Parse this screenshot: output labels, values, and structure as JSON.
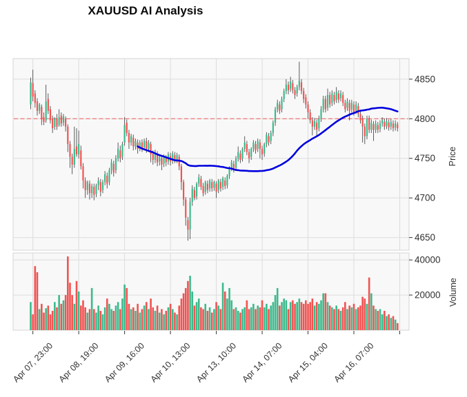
{
  "title": "XAUUSD AI Analysis",
  "colors": {
    "up": "#3CBA8B",
    "down": "#F05352",
    "wick": "#4A4A4A",
    "ma_line": "#0000DD",
    "level_line": "#F08080",
    "grid": "#DCDCDC",
    "panel_bg": "#F8F8F8",
    "panel_border": "#D4D4D4",
    "tick_text": "#303030"
  },
  "chart_data": {
    "type": "candlestick",
    "title": "XAUUSD AI Analysis",
    "legend": "none",
    "grid": "on",
    "price_axis": {
      "label": "Price",
      "ticks": [
        4850,
        4800,
        4750,
        4700,
        4650
      ],
      "range": [
        4634,
        4876
      ],
      "side": "right"
    },
    "volume_axis": {
      "label": "Volume",
      "ticks": [
        40000,
        20000
      ],
      "range": [
        0,
        44000
      ],
      "side": "right"
    },
    "x_ticks": [
      {
        "index": 1,
        "label": "Apr 07, 23:00"
      },
      {
        "index": 22,
        "label": "Apr 08, 19:00"
      },
      {
        "index": 43,
        "label": "Apr 09, 16:00"
      },
      {
        "index": 64,
        "label": "Apr 10, 13:00"
      },
      {
        "index": 85,
        "label": "Apr 13, 10:00"
      },
      {
        "index": 106,
        "label": "Apr 14, 07:00"
      },
      {
        "index": 127,
        "label": "Apr 15, 04:00"
      },
      {
        "index": 148,
        "label": "Apr 16, 07:00"
      },
      {
        "index": 169,
        "label": ""
      }
    ],
    "overlays": {
      "ma": {
        "name": "moving-average",
        "window": 50,
        "color": "#0000DD"
      },
      "hline": {
        "value": 4800,
        "style": "dashed",
        "color": "#F08080"
      }
    },
    "candle_columns": [
      "open",
      "high",
      "low",
      "close",
      "volume"
    ],
    "candles": [
      [
        4818,
        4852,
        4812,
        4846,
        16000
      ],
      [
        4845,
        4862,
        4822,
        4828,
        9000
      ],
      [
        4832,
        4836,
        4814,
        4820,
        36500
      ],
      [
        4822,
        4826,
        4804,
        4810,
        33000
      ],
      [
        4810,
        4820,
        4806,
        4818,
        12000
      ],
      [
        4815,
        4818,
        4792,
        4800,
        15000
      ],
      [
        4802,
        4808,
        4792,
        4796,
        10000
      ],
      [
        4798,
        4843,
        4795,
        4822,
        12500
      ],
      [
        4825,
        4832,
        4806,
        4810,
        14000
      ],
      [
        4812,
        4816,
        4794,
        4798,
        9000
      ],
      [
        4800,
        4804,
        4782,
        4788,
        11000
      ],
      [
        4790,
        4802,
        4786,
        4800,
        16000
      ],
      [
        4800,
        4806,
        4786,
        4790,
        13000
      ],
      [
        4792,
        4812,
        4790,
        4802,
        20000
      ],
      [
        4804,
        4808,
        4790,
        4794,
        15000
      ],
      [
        4795,
        4806,
        4791,
        4803,
        17000
      ],
      [
        4800,
        4803,
        4784,
        4790,
        20000
      ],
      [
        4790,
        4793,
        4758,
        4768,
        42000
      ],
      [
        4768,
        4772,
        4738,
        4752,
        27000
      ],
      [
        4752,
        4756,
        4730,
        4742,
        20000
      ],
      [
        4742,
        4790,
        4738,
        4762,
        15000
      ],
      [
        4765,
        4788,
        4752,
        4755,
        28000
      ],
      [
        4755,
        4785,
        4750,
        4768,
        22000
      ],
      [
        4760,
        4766,
        4736,
        4740,
        14000
      ],
      [
        4740,
        4744,
        4712,
        4722,
        17000
      ],
      [
        4722,
        4726,
        4700,
        4710,
        13000
      ],
      [
        4710,
        4722,
        4704,
        4720,
        10000
      ],
      [
        4718,
        4722,
        4698,
        4706,
        12000
      ],
      [
        4706,
        4718,
        4700,
        4715,
        24000
      ],
      [
        4714,
        4718,
        4697,
        4704,
        12000
      ],
      [
        4705,
        4718,
        4701,
        4716,
        10000
      ],
      [
        4716,
        4726,
        4710,
        4722,
        14000
      ],
      [
        4720,
        4724,
        4702,
        4708,
        11000
      ],
      [
        4710,
        4723,
        4706,
        4720,
        9000
      ],
      [
        4720,
        4734,
        4716,
        4730,
        13000
      ],
      [
        4728,
        4732,
        4712,
        4718,
        18000
      ],
      [
        4720,
        4738,
        4716,
        4735,
        15000
      ],
      [
        4735,
        4749,
        4730,
        4745,
        12000
      ],
      [
        4743,
        4747,
        4727,
        4732,
        11000
      ],
      [
        4735,
        4754,
        4731,
        4750,
        14000
      ],
      [
        4750,
        4770,
        4746,
        4762,
        16000
      ],
      [
        4760,
        4766,
        4745,
        4750,
        12000
      ],
      [
        4752,
        4771,
        4748,
        4768,
        18000
      ],
      [
        4770,
        4802,
        4766,
        4792,
        26000
      ],
      [
        4795,
        4799,
        4778,
        4782,
        24000
      ],
      [
        4782,
        4786,
        4762,
        4770,
        15000
      ],
      [
        4770,
        4781,
        4766,
        4778,
        12000
      ],
      [
        4776,
        4780,
        4760,
        4765,
        13000
      ],
      [
        4765,
        4775,
        4761,
        4772,
        11000
      ],
      [
        4770,
        4774,
        4756,
        4762,
        15000
      ],
      [
        4763,
        4773,
        4759,
        4770,
        10000
      ],
      [
        4770,
        4774,
        4758,
        4763,
        12000
      ],
      [
        4764,
        4775,
        4760,
        4772,
        14000
      ],
      [
        4772,
        4776,
        4757,
        4762,
        16000
      ],
      [
        4762,
        4773,
        4758,
        4770,
        12000
      ],
      [
        4768,
        4771,
        4745,
        4755,
        18000
      ],
      [
        4756,
        4760,
        4742,
        4748,
        13000
      ],
      [
        4748,
        4761,
        4744,
        4758,
        11000
      ],
      [
        4756,
        4759,
        4740,
        4745,
        14000
      ],
      [
        4746,
        4755,
        4741,
        4752,
        10000
      ],
      [
        4750,
        4753,
        4735,
        4742,
        12000
      ],
      [
        4743,
        4755,
        4739,
        4752,
        9000
      ],
      [
        4750,
        4754,
        4740,
        4745,
        11000
      ],
      [
        4746,
        4758,
        4742,
        4755,
        13000
      ],
      [
        4753,
        4757,
        4741,
        4746,
        15000
      ],
      [
        4747,
        4759,
        4743,
        4756,
        12000
      ],
      [
        4754,
        4758,
        4744,
        4748,
        10000
      ],
      [
        4748,
        4757,
        4744,
        4754,
        9000
      ],
      [
        4752,
        4755,
        4735,
        4740,
        14000
      ],
      [
        4740,
        4743,
        4710,
        4720,
        18000
      ],
      [
        4720,
        4723,
        4690,
        4698,
        21000
      ],
      [
        4698,
        4701,
        4665,
        4675,
        24000
      ],
      [
        4672,
        4676,
        4646,
        4660,
        28000
      ],
      [
        4660,
        4700,
        4648,
        4695,
        31000
      ],
      [
        4695,
        4716,
        4690,
        4712,
        22000
      ],
      [
        4710,
        4714,
        4697,
        4700,
        14000
      ],
      [
        4702,
        4720,
        4698,
        4718,
        16000
      ],
      [
        4718,
        4730,
        4714,
        4726,
        18000
      ],
      [
        4724,
        4728,
        4710,
        4714,
        13000
      ],
      [
        4715,
        4719,
        4702,
        4706,
        12000
      ],
      [
        4708,
        4722,
        4704,
        4720,
        15000
      ],
      [
        4718,
        4722,
        4706,
        4710,
        11000
      ],
      [
        4712,
        4724,
        4708,
        4722,
        13000
      ],
      [
        4720,
        4724,
        4708,
        4712,
        10000
      ],
      [
        4713,
        4722,
        4709,
        4720,
        12000
      ],
      [
        4718,
        4721,
        4700,
        4708,
        16000
      ],
      [
        4710,
        4724,
        4706,
        4722,
        14000
      ],
      [
        4720,
        4724,
        4708,
        4712,
        12000
      ],
      [
        4714,
        4727,
        4710,
        4725,
        27000
      ],
      [
        4722,
        4726,
        4711,
        4715,
        22000
      ],
      [
        4716,
        4730,
        4712,
        4728,
        18000
      ],
      [
        4728,
        4740,
        4724,
        4738,
        24000
      ],
      [
        4738,
        4748,
        4734,
        4745,
        17000
      ],
      [
        4743,
        4747,
        4732,
        4736,
        12000
      ],
      [
        4738,
        4753,
        4734,
        4750,
        13000
      ],
      [
        4750,
        4765,
        4746,
        4758,
        11000
      ],
      [
        4756,
        4760,
        4744,
        4748,
        10000
      ],
      [
        4750,
        4764,
        4746,
        4762,
        12000
      ],
      [
        4762,
        4778,
        4758,
        4770,
        13000
      ],
      [
        4768,
        4772,
        4754,
        4758,
        17000
      ],
      [
        4758,
        4762,
        4744,
        4750,
        12000
      ],
      [
        4752,
        4764,
        4748,
        4762,
        13000
      ],
      [
        4762,
        4773,
        4758,
        4770,
        15000
      ],
      [
        4768,
        4772,
        4756,
        4760,
        12000
      ],
      [
        4762,
        4775,
        4758,
        4772,
        14000
      ],
      [
        4770,
        4774,
        4750,
        4762,
        13000
      ],
      [
        4762,
        4766,
        4748,
        4755,
        17000
      ],
      [
        4756,
        4770,
        4752,
        4768,
        13000
      ],
      [
        4768,
        4783,
        4764,
        4780,
        15000
      ],
      [
        4778,
        4782,
        4766,
        4770,
        12000
      ],
      [
        4772,
        4785,
        4768,
        4782,
        14000
      ],
      [
        4782,
        4798,
        4778,
        4795,
        16000
      ],
      [
        4795,
        4815,
        4791,
        4812,
        20000
      ],
      [
        4812,
        4824,
        4808,
        4820,
        24000
      ],
      [
        4818,
        4822,
        4806,
        4810,
        14000
      ],
      [
        4812,
        4828,
        4808,
        4825,
        16000
      ],
      [
        4825,
        4838,
        4821,
        4835,
        18000
      ],
      [
        4835,
        4850,
        4831,
        4843,
        17000
      ],
      [
        4843,
        4847,
        4831,
        4836,
        12000
      ],
      [
        4838,
        4853,
        4834,
        4847,
        16000
      ],
      [
        4845,
        4849,
        4832,
        4836,
        17000
      ],
      [
        4836,
        4840,
        4825,
        4830,
        15000
      ],
      [
        4832,
        4843,
        4828,
        4840,
        16000
      ],
      [
        4840,
        4872,
        4836,
        4848,
        18000
      ],
      [
        4846,
        4850,
        4831,
        4835,
        16000
      ],
      [
        4835,
        4839,
        4820,
        4825,
        15000
      ],
      [
        4827,
        4831,
        4813,
        4818,
        17000
      ],
      [
        4818,
        4822,
        4800,
        4808,
        15000
      ],
      [
        4808,
        4812,
        4794,
        4798,
        16000
      ],
      [
        4798,
        4802,
        4779,
        4790,
        18000
      ],
      [
        4790,
        4801,
        4786,
        4797,
        14000
      ],
      [
        4795,
        4799,
        4778,
        4786,
        16000
      ],
      [
        4788,
        4804,
        4784,
        4800,
        15000
      ],
      [
        4800,
        4816,
        4796,
        4812,
        17000
      ],
      [
        4812,
        4829,
        4808,
        4825,
        21000
      ],
      [
        4825,
        4829,
        4808,
        4812,
        21000
      ],
      [
        4814,
        4838,
        4810,
        4830,
        16000
      ],
      [
        4830,
        4834,
        4814,
        4818,
        14000
      ],
      [
        4820,
        4836,
        4816,
        4832,
        13000
      ],
      [
        4830,
        4834,
        4818,
        4822,
        12000
      ],
      [
        4824,
        4840,
        4820,
        4834,
        14000
      ],
      [
        4832,
        4836,
        4820,
        4824,
        12000
      ],
      [
        4826,
        4836,
        4822,
        4832,
        11000
      ],
      [
        4830,
        4834,
        4816,
        4820,
        13000
      ],
      [
        4820,
        4824,
        4808,
        4812,
        16000
      ],
      [
        4814,
        4826,
        4810,
        4822,
        12000
      ],
      [
        4820,
        4824,
        4798,
        4810,
        14000
      ],
      [
        4812,
        4824,
        4808,
        4820,
        13000
      ],
      [
        4818,
        4822,
        4804,
        4808,
        15000
      ],
      [
        4810,
        4822,
        4806,
        4818,
        12000
      ],
      [
        4816,
        4820,
        4802,
        4806,
        13000
      ],
      [
        4806,
        4810,
        4794,
        4798,
        14000
      ],
      [
        4800,
        4804,
        4770,
        4790,
        19000
      ],
      [
        4790,
        4794,
        4768,
        4778,
        18000
      ],
      [
        4778,
        4804,
        4774,
        4800,
        15000
      ],
      [
        4800,
        4804,
        4782,
        4786,
        30000
      ],
      [
        4786,
        4799,
        4782,
        4795,
        21000
      ],
      [
        4793,
        4797,
        4772,
        4786,
        14000
      ],
      [
        4786,
        4798,
        4782,
        4794,
        12000
      ],
      [
        4792,
        4796,
        4782,
        4786,
        11000
      ],
      [
        4787,
        4798,
        4783,
        4794,
        12000
      ],
      [
        4794,
        4802,
        4790,
        4798,
        9000
      ],
      [
        4796,
        4800,
        4786,
        4790,
        11000
      ],
      [
        4791,
        4801,
        4787,
        4797,
        8000
      ],
      [
        4795,
        4799,
        4785,
        4789,
        9000
      ],
      [
        4790,
        4800,
        4786,
        4796,
        7000
      ],
      [
        4794,
        4798,
        4784,
        4788,
        8000
      ],
      [
        4789,
        4798,
        4785,
        4794,
        6000
      ],
      [
        4793,
        4796,
        4784,
        4788,
        4000
      ]
    ]
  }
}
